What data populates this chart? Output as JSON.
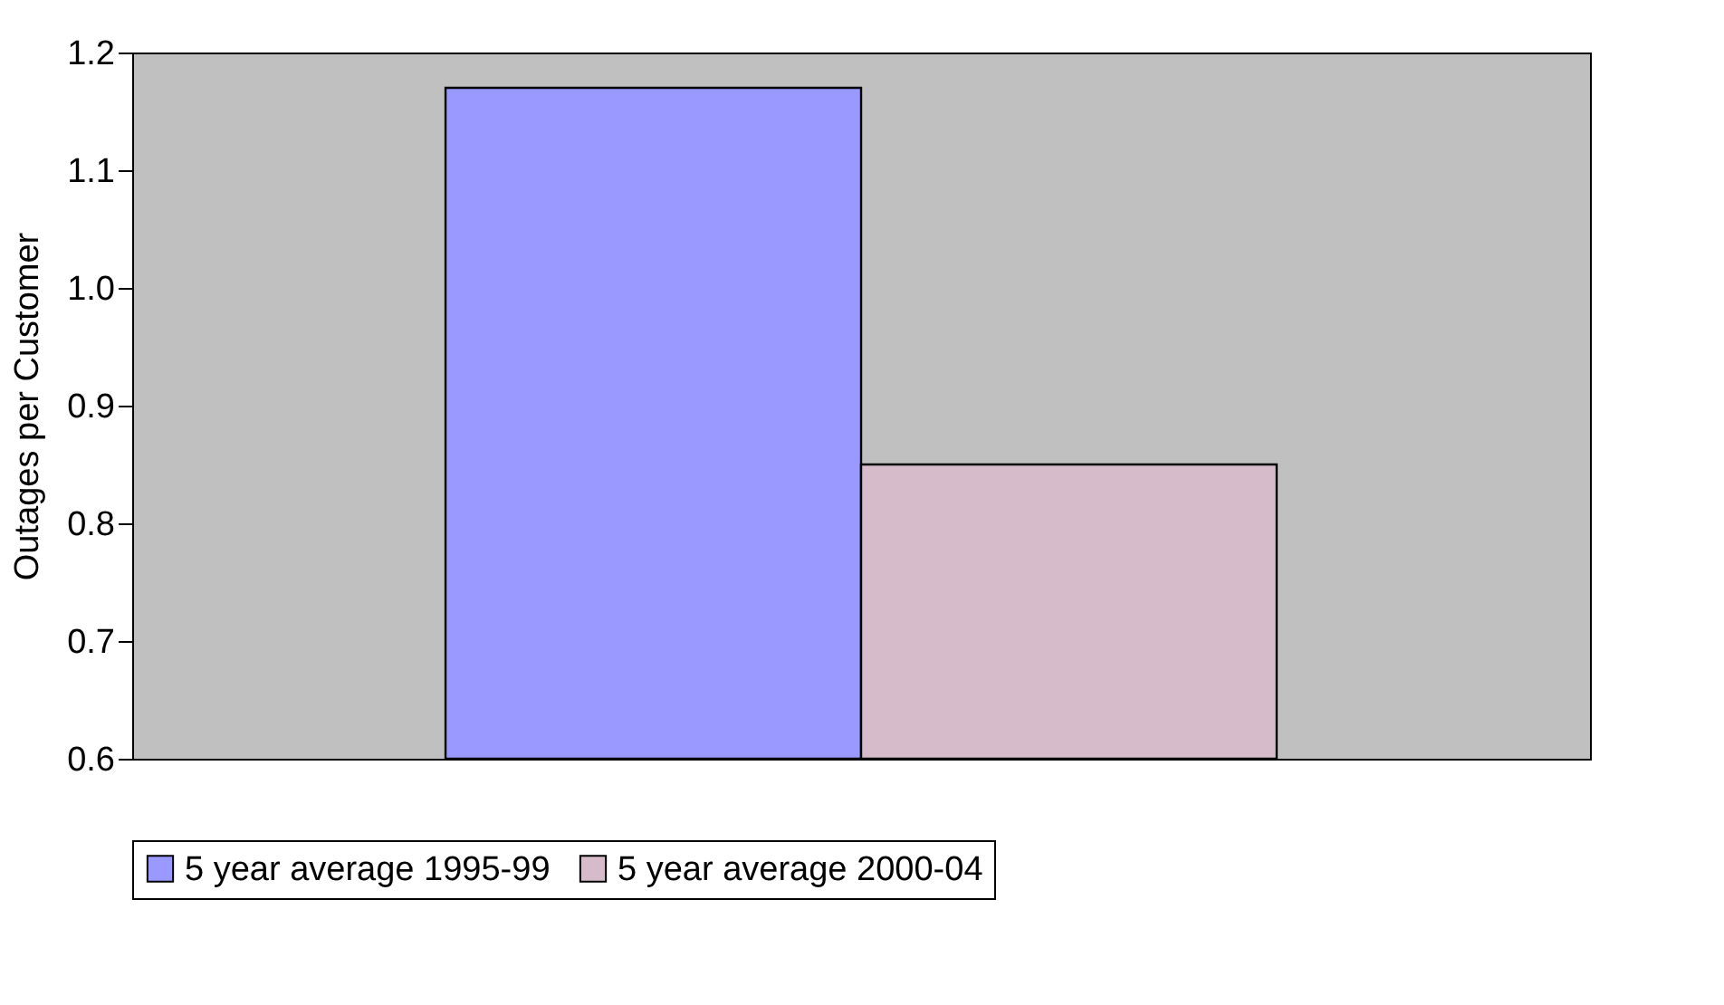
{
  "chart_data": {
    "type": "bar",
    "ylabel": "Outages per Customer",
    "categories": [
      null
    ],
    "series": [
      {
        "name": "5 year average 1995-99",
        "color": "#9999ff",
        "values": [
          1.17
        ]
      },
      {
        "name": "5 year average 2000-04",
        "color": "#d6bccb",
        "values": [
          0.85
        ]
      }
    ],
    "ylim": [
      0.6,
      1.2
    ],
    "yticks": [
      0.6,
      0.7,
      0.8,
      0.9,
      {
        "value": 1.0,
        "label": "1.0"
      },
      1.1,
      1.2
    ],
    "grid": false,
    "legend": "bottom"
  }
}
